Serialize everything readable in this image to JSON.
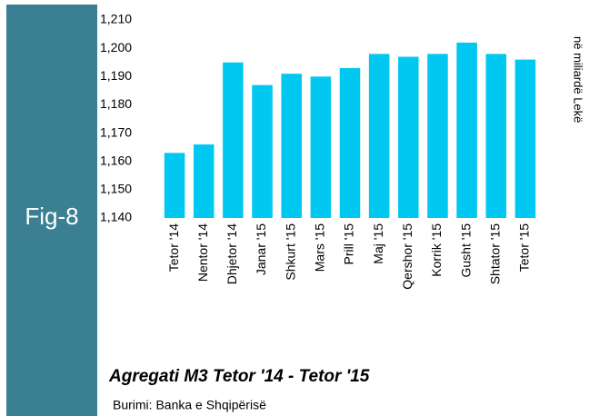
{
  "chart_data": {
    "type": "bar",
    "figure_label": "Fig-8",
    "title": "Agregati M3 Tetor '14 - Tetor '15",
    "source": "Burimi: Banka e Shqipërisë",
    "y_axis_label": "në miliardë Lekë",
    "categories": [
      "Tetor '14",
      "Nentor '14",
      "Dhjetor '14",
      "Janar '15",
      "Shkurt '15",
      "Mars '15",
      "Prill '15",
      "Maj '15",
      "Qershor '15",
      "Korrik '15",
      "Gusht '15",
      "Shtator '15",
      "Tetor '15"
    ],
    "values": [
      1163,
      1166,
      1195,
      1187,
      1191,
      1190,
      1193,
      1198,
      1197,
      1198,
      1202,
      1198,
      1196
    ],
    "color": "#00c8f0",
    "ylim": [
      1140,
      1210
    ],
    "yticks": [
      {
        "value": 1140,
        "label": "1,140"
      },
      {
        "value": 1150,
        "label": "1,150"
      },
      {
        "value": 1160,
        "label": "1,160"
      },
      {
        "value": 1170,
        "label": "1,170"
      },
      {
        "value": 1180,
        "label": "1,180"
      },
      {
        "value": 1190,
        "label": "1,190"
      },
      {
        "value": 1200,
        "label": "1,200"
      },
      {
        "value": 1210,
        "label": "1,210"
      }
    ]
  }
}
